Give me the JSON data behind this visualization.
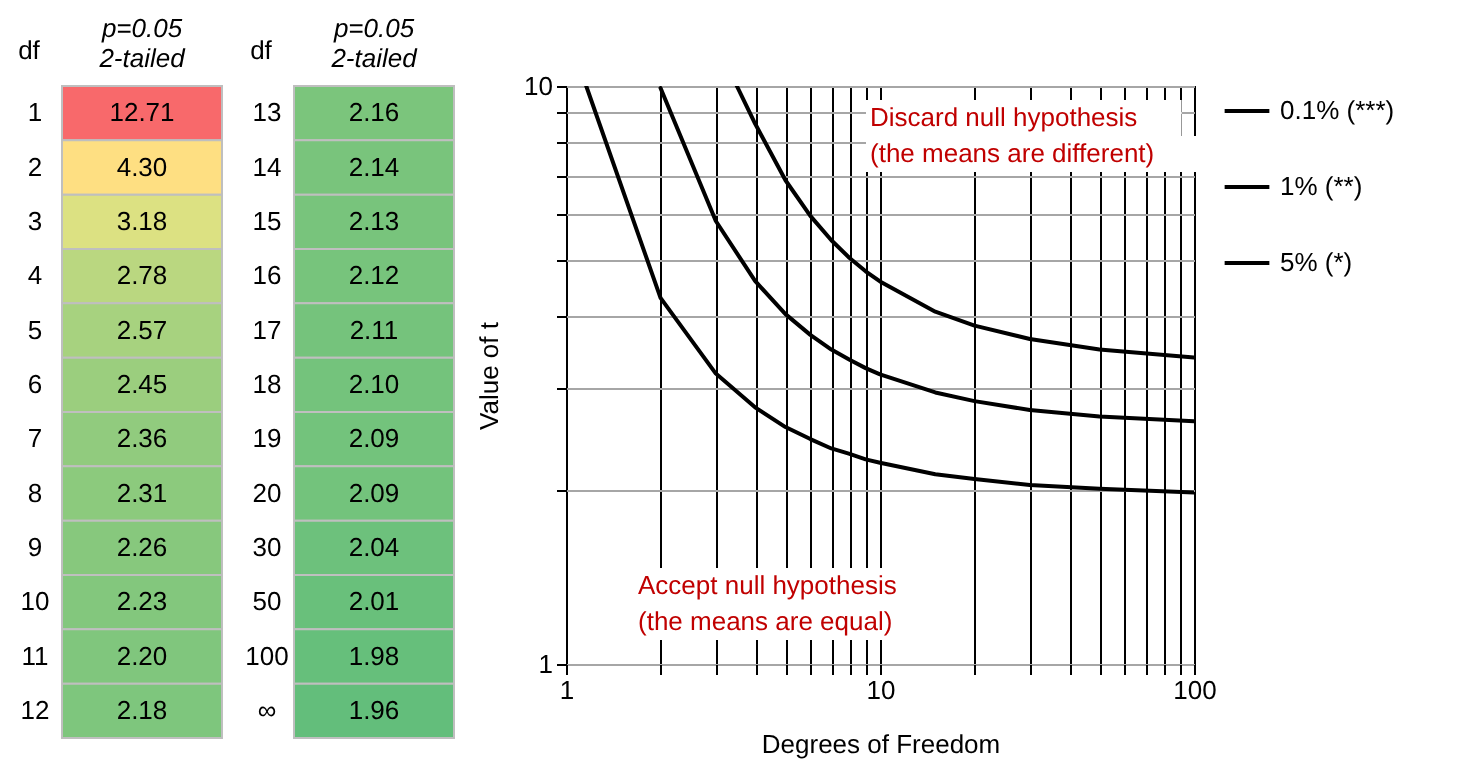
{
  "chart_data": [
    {
      "type": "heatmap",
      "ylabel": "df",
      "categories": [
        "p=0.05 2-tailed"
      ],
      "y_categories": [
        "1",
        "2",
        "3",
        "4",
        "5",
        "6",
        "7",
        "8",
        "9",
        "10",
        "11",
        "12"
      ],
      "cells": [
        [
          12.71
        ],
        [
          4.3
        ],
        [
          3.18
        ],
        [
          2.78
        ],
        [
          2.57
        ],
        [
          2.45
        ],
        [
          2.36
        ],
        [
          2.31
        ],
        [
          2.26
        ],
        [
          2.23
        ],
        [
          2.2
        ],
        [
          2.18
        ]
      ],
      "cell_labels": [
        [
          "12.71"
        ],
        [
          "4.30"
        ],
        [
          "3.18"
        ],
        [
          "2.78"
        ],
        [
          "2.57"
        ],
        [
          "2.45"
        ],
        [
          "2.36"
        ],
        [
          "2.31"
        ],
        [
          "2.26"
        ],
        [
          "2.23"
        ],
        [
          "2.20"
        ],
        [
          "2.18"
        ]
      ]
    },
    {
      "type": "heatmap",
      "ylabel": "df",
      "categories": [
        "p=0.05 2-tailed"
      ],
      "y_categories": [
        "13",
        "14",
        "15",
        "16",
        "17",
        "18",
        "19",
        "20",
        "30",
        "50",
        "100",
        "∞"
      ],
      "cells": [
        [
          2.16
        ],
        [
          2.14
        ],
        [
          2.13
        ],
        [
          2.12
        ],
        [
          2.11
        ],
        [
          2.1
        ],
        [
          2.09
        ],
        [
          2.09
        ],
        [
          2.04
        ],
        [
          2.01
        ],
        [
          1.98
        ],
        [
          1.96
        ]
      ],
      "cell_labels": [
        [
          "2.16"
        ],
        [
          "2.14"
        ],
        [
          "2.13"
        ],
        [
          "2.12"
        ],
        [
          "2.11"
        ],
        [
          "2.10"
        ],
        [
          "2.09"
        ],
        [
          "2.09"
        ],
        [
          "2.04"
        ],
        [
          "2.01"
        ],
        [
          "1.98"
        ],
        [
          "1.96"
        ]
      ]
    },
    {
      "type": "line",
      "xlabel": "Degrees of Freedom",
      "ylabel": "Value of t",
      "log": "xy",
      "grid": true,
      "legend": "right",
      "marker": "none",
      "line_style": "solid",
      "xlim": [
        1,
        100
      ],
      "ylim": [
        1,
        10
      ],
      "xticks": [
        1,
        {
          "value": 2,
          "label": null
        },
        {
          "value": 3,
          "label": null
        },
        {
          "value": 4,
          "label": null
        },
        {
          "value": 5,
          "label": null
        },
        {
          "value": 6,
          "label": null
        },
        {
          "value": 7,
          "label": null
        },
        {
          "value": 8,
          "label": null
        },
        {
          "value": 9,
          "label": null
        },
        10,
        {
          "value": 20,
          "label": null
        },
        {
          "value": 30,
          "label": null
        },
        {
          "value": 40,
          "label": null
        },
        {
          "value": 50,
          "label": null
        },
        {
          "value": 60,
          "label": null
        },
        {
          "value": 70,
          "label": null
        },
        {
          "value": 80,
          "label": null
        },
        {
          "value": 90,
          "label": null
        },
        100
      ],
      "yticks": [
        1,
        {
          "value": 2,
          "label": null
        },
        {
          "value": 3,
          "label": null
        },
        {
          "value": 4,
          "label": null
        },
        {
          "value": 5,
          "label": null
        },
        {
          "value": 6,
          "label": null
        },
        {
          "value": 7,
          "label": null
        },
        {
          "value": 8,
          "label": null
        },
        {
          "value": 9,
          "label": null
        },
        10
      ],
      "series": [
        {
          "name": "0.1% (***)",
          "color": "#000000",
          "x": [
            3.5,
            4,
            5,
            6,
            7,
            8,
            9,
            10,
            15,
            20,
            30,
            50,
            100
          ],
          "values": [
            10,
            8.61,
            6.87,
            5.96,
            5.41,
            5.04,
            4.78,
            4.59,
            4.07,
            3.85,
            3.65,
            3.5,
            3.39
          ]
        },
        {
          "name": "1% (**)",
          "color": "#000000",
          "x": [
            2,
            3,
            4,
            5,
            6,
            7,
            8,
            9,
            10,
            15,
            20,
            30,
            50,
            100
          ],
          "values": [
            9.92,
            5.84,
            4.6,
            4.03,
            3.71,
            3.5,
            3.36,
            3.25,
            3.17,
            2.95,
            2.85,
            2.75,
            2.68,
            2.63
          ]
        },
        {
          "name": "5% (*)",
          "color": "#000000",
          "x": [
            1.16,
            2,
            3,
            4,
            5,
            6,
            7,
            8,
            9,
            10,
            15,
            20,
            30,
            50,
            100
          ],
          "values": [
            10,
            4.3,
            3.18,
            2.78,
            2.57,
            2.45,
            2.36,
            2.31,
            2.26,
            2.23,
            2.13,
            2.09,
            2.04,
            2.01,
            1.98
          ]
        }
      ],
      "annotations": [
        "Discard null hypothesis",
        "(the means are different)",
        "Accept null hypothesis",
        "(the means are equal)"
      ]
    }
  ]
}
